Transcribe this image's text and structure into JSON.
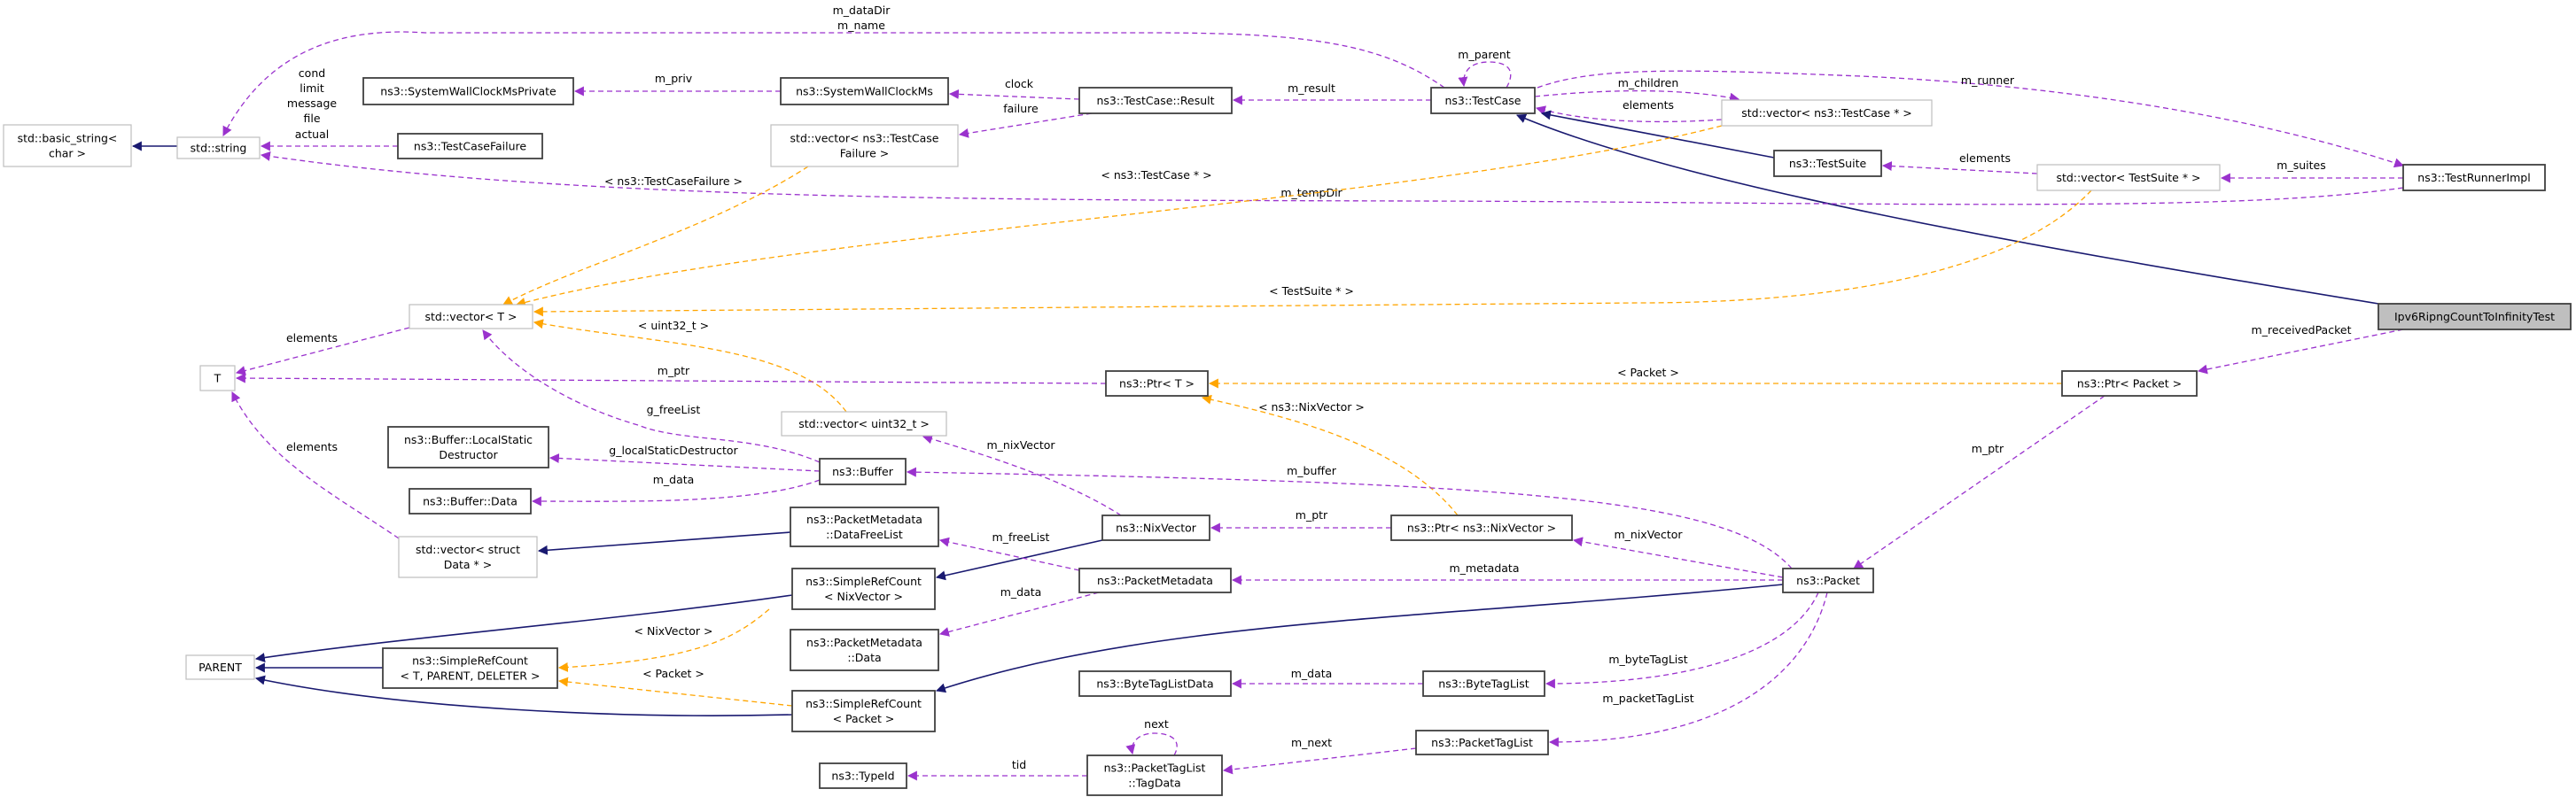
{
  "diagram": {
    "colors": {
      "member": "#9a32cd",
      "template": "#ffa500",
      "inheritance": "#191970",
      "highlight_fill": "#bfbfbf",
      "documented_border": "#404040",
      "undocumented_border": "#bfbfbf"
    },
    "nodes": [
      {
        "id": "basic_string",
        "lines": [
          "std::basic_string<",
          "char >"
        ],
        "style": "plain"
      },
      {
        "id": "std_string",
        "lines": [
          "std::string"
        ],
        "style": "plain"
      },
      {
        "id": "swcm_private",
        "lines": [
          "ns3::SystemWallClockMsPrivate"
        ],
        "style": "doc"
      },
      {
        "id": "swcm",
        "lines": [
          "ns3::SystemWallClockMs"
        ],
        "style": "doc"
      },
      {
        "id": "tc_result",
        "lines": [
          "ns3::TestCase::Result"
        ],
        "style": "doc"
      },
      {
        "id": "testcase",
        "lines": [
          "ns3::TestCase"
        ],
        "style": "doc"
      },
      {
        "id": "tc_failure",
        "lines": [
          "ns3::TestCaseFailure"
        ],
        "style": "doc"
      },
      {
        "id": "vec_tcf",
        "lines": [
          "std::vector< ns3::TestCase",
          "Failure >"
        ],
        "style": "plain"
      },
      {
        "id": "vec_tcp",
        "lines": [
          "std::vector< ns3::TestCase * >"
        ],
        "style": "plain"
      },
      {
        "id": "testsuite",
        "lines": [
          "ns3::TestSuite"
        ],
        "style": "doc"
      },
      {
        "id": "vec_tsp",
        "lines": [
          "std::vector< TestSuite * >"
        ],
        "style": "plain"
      },
      {
        "id": "runner",
        "lines": [
          "ns3::TestRunnerImpl"
        ],
        "style": "doc"
      },
      {
        "id": "ipv6",
        "lines": [
          "Ipv6RipngCountToInfinityTest"
        ],
        "style": "focus"
      },
      {
        "id": "vec_t",
        "lines": [
          "std::vector< T >"
        ],
        "style": "plain"
      },
      {
        "id": "t",
        "lines": [
          "T"
        ],
        "style": "plain"
      },
      {
        "id": "ptr_t",
        "lines": [
          "ns3::Ptr< T >"
        ],
        "style": "doc"
      },
      {
        "id": "ptr_packet",
        "lines": [
          "ns3::Ptr< Packet >"
        ],
        "style": "doc"
      },
      {
        "id": "vec_u32",
        "lines": [
          "std::vector< uint32_t >"
        ],
        "style": "plain"
      },
      {
        "id": "buf_lsd",
        "lines": [
          "ns3::Buffer::LocalStatic",
          "Destructor"
        ],
        "style": "doc"
      },
      {
        "id": "buffer",
        "lines": [
          "ns3::Buffer"
        ],
        "style": "doc"
      },
      {
        "id": "buf_data",
        "lines": [
          "ns3::Buffer::Data"
        ],
        "style": "doc"
      },
      {
        "id": "pm_dfl",
        "lines": [
          "ns3::PacketMetadata",
          "::DataFreeList"
        ],
        "style": "doc"
      },
      {
        "id": "nixvector",
        "lines": [
          "ns3::NixVector"
        ],
        "style": "doc"
      },
      {
        "id": "ptr_nix",
        "lines": [
          "ns3::Ptr< ns3::NixVector >"
        ],
        "style": "doc"
      },
      {
        "id": "vec_data",
        "lines": [
          "std::vector< struct",
          "Data * >"
        ],
        "style": "plain"
      },
      {
        "id": "src_nix",
        "lines": [
          "ns3::SimpleRefCount",
          "< NixVector >"
        ],
        "style": "doc"
      },
      {
        "id": "pmetadata",
        "lines": [
          "ns3::PacketMetadata"
        ],
        "style": "doc"
      },
      {
        "id": "packet",
        "lines": [
          "ns3::Packet"
        ],
        "style": "doc"
      },
      {
        "id": "pm_data",
        "lines": [
          "ns3::PacketMetadata",
          "::Data"
        ],
        "style": "doc"
      },
      {
        "id": "parent",
        "lines": [
          "PARENT"
        ],
        "style": "plain"
      },
      {
        "id": "src_t",
        "lines": [
          "ns3::SimpleRefCount",
          "< T, PARENT, DELETER >"
        ],
        "style": "doc"
      },
      {
        "id": "btl_data",
        "lines": [
          "ns3::ByteTagListData"
        ],
        "style": "doc"
      },
      {
        "id": "btl",
        "lines": [
          "ns3::ByteTagList"
        ],
        "style": "doc"
      },
      {
        "id": "src_packet",
        "lines": [
          "ns3::SimpleRefCount",
          "< Packet >"
        ],
        "style": "doc"
      },
      {
        "id": "ptl",
        "lines": [
          "ns3::PacketTagList"
        ],
        "style": "doc"
      },
      {
        "id": "typeid",
        "lines": [
          "ns3::TypeId"
        ],
        "style": "doc"
      },
      {
        "id": "tagdata",
        "lines": [
          "ns3::PacketTagList",
          "::TagData"
        ],
        "style": "doc"
      }
    ],
    "edges": [
      {
        "from": "testcase",
        "to": "std_string",
        "kind": "member",
        "labels": [
          "m_dataDir",
          "m_name"
        ]
      },
      {
        "from": "swcm",
        "to": "swcm_private",
        "kind": "member",
        "labels": [
          "m_priv"
        ]
      },
      {
        "from": "tc_result",
        "to": "swcm",
        "kind": "member",
        "labels": [
          "clock"
        ]
      },
      {
        "from": "tc_result",
        "to": "vec_tcf",
        "kind": "member",
        "labels": [
          "failure"
        ]
      },
      {
        "from": "testcase",
        "to": "tc_result",
        "kind": "member",
        "labels": [
          "m_result"
        ]
      },
      {
        "from": "testcase",
        "to": "testcase",
        "kind": "member",
        "labels": [
          "m_parent"
        ]
      },
      {
        "from": "testcase",
        "to": "vec_tcp",
        "kind": "member",
        "labels": [
          "m_children"
        ]
      },
      {
        "from": "vec_tcp",
        "to": "testcase",
        "kind": "member",
        "labels": [
          "elements"
        ]
      },
      {
        "from": "testsuite",
        "to": "testcase",
        "kind": "inheritance",
        "labels": []
      },
      {
        "from": "ipv6",
        "to": "testcase",
        "kind": "inheritance",
        "labels": []
      },
      {
        "from": "testcase",
        "to": "runner",
        "kind": "member",
        "labels": [
          "m_runner"
        ]
      },
      {
        "from": "vec_tsp",
        "to": "testsuite",
        "kind": "member",
        "labels": [
          "elements"
        ]
      },
      {
        "from": "runner",
        "to": "vec_tsp",
        "kind": "member",
        "labels": [
          "m_suites"
        ]
      },
      {
        "from": "runner",
        "to": "std_string",
        "kind": "member",
        "labels": [
          "m_tempDir"
        ]
      },
      {
        "from": "tc_failure",
        "to": "std_string",
        "kind": "member",
        "labels": [
          "cond",
          "limit",
          "message",
          "file",
          "actual"
        ]
      },
      {
        "from": "std_string",
        "to": "basic_string",
        "kind": "inheritance",
        "labels": []
      },
      {
        "from": "vec_tcf",
        "to": "vec_t",
        "kind": "template",
        "labels": [
          "< ns3::TestCaseFailure >"
        ]
      },
      {
        "from": "vec_tcp",
        "to": "vec_t",
        "kind": "template",
        "labels": [
          "< ns3::TestCase * >"
        ]
      },
      {
        "from": "vec_tsp",
        "to": "vec_t",
        "kind": "template",
        "labels": [
          "< TestSuite * >"
        ]
      },
      {
        "from": "vec_u32",
        "to": "vec_t",
        "kind": "template",
        "labels": [
          "< uint32_t >"
        ]
      },
      {
        "from": "vec_t",
        "to": "t",
        "kind": "member",
        "labels": [
          "elements"
        ]
      },
      {
        "from": "ptr_t",
        "to": "t",
        "kind": "member",
        "labels": [
          "m_ptr"
        ]
      },
      {
        "from": "vec_data",
        "to": "t",
        "kind": "member",
        "labels": [
          "elements"
        ]
      },
      {
        "from": "buffer",
        "to": "vec_t",
        "kind": "member",
        "labels": [
          "g_freeList"
        ]
      },
      {
        "from": "buffer",
        "to": "buf_lsd",
        "kind": "member",
        "labels": [
          "g_localStaticDestructor"
        ]
      },
      {
        "from": "buffer",
        "to": "buf_data",
        "kind": "member",
        "labels": [
          "m_data"
        ]
      },
      {
        "from": "pm_dfl",
        "to": "vec_data",
        "kind": "inheritance",
        "labels": []
      },
      {
        "from": "nixvector",
        "to": "src_nix",
        "kind": "inheritance",
        "labels": []
      },
      {
        "from": "nixvector",
        "to": "vec_u32",
        "kind": "member",
        "labels": [
          "m_nixVector"
        ]
      },
      {
        "from": "ptr_nix",
        "to": "nixvector",
        "kind": "member",
        "labels": [
          "m_ptr"
        ]
      },
      {
        "from": "ptr_nix",
        "to": "ptr_t",
        "kind": "template",
        "labels": [
          "< ns3::NixVector >"
        ]
      },
      {
        "from": "ptr_packet",
        "to": "ptr_t",
        "kind": "template",
        "labels": [
          "< Packet >"
        ]
      },
      {
        "from": "ipv6",
        "to": "ptr_packet",
        "kind": "member",
        "labels": [
          "m_receivedPacket"
        ]
      },
      {
        "from": "ptr_packet",
        "to": "packet",
        "kind": "member",
        "labels": [
          "m_ptr"
        ]
      },
      {
        "from": "packet",
        "to": "buffer",
        "kind": "member",
        "labels": [
          "m_buffer"
        ]
      },
      {
        "from": "packet",
        "to": "ptr_nix",
        "kind": "member",
        "labels": [
          "m_nixVector"
        ]
      },
      {
        "from": "packet",
        "to": "pmetadata",
        "kind": "member",
        "labels": [
          "m_metadata"
        ]
      },
      {
        "from": "packet",
        "to": "src_packet",
        "kind": "inheritance",
        "labels": []
      },
      {
        "from": "pmetadata",
        "to": "pm_dfl",
        "kind": "member",
        "labels": [
          "m_freeList"
        ]
      },
      {
        "from": "pmetadata",
        "to": "pm_data",
        "kind": "member",
        "labels": [
          "m_data"
        ]
      },
      {
        "from": "src_nix",
        "to": "parent",
        "kind": "inheritance",
        "labels": []
      },
      {
        "from": "src_t",
        "to": "parent",
        "kind": "inheritance",
        "labels": []
      },
      {
        "from": "src_packet",
        "to": "parent",
        "kind": "inheritance",
        "labels": []
      },
      {
        "from": "src_nix",
        "to": "src_t",
        "kind": "template",
        "labels": [
          "< NixVector >"
        ]
      },
      {
        "from": "src_packet",
        "to": "src_t",
        "kind": "template",
        "labels": [
          "< Packet >"
        ]
      },
      {
        "from": "packet",
        "to": "btl",
        "kind": "member",
        "labels": [
          "m_byteTagList"
        ]
      },
      {
        "from": "packet",
        "to": "ptl",
        "kind": "member",
        "labels": [
          "m_packetTagList"
        ]
      },
      {
        "from": "btl",
        "to": "btl_data",
        "kind": "member",
        "labels": [
          "m_data"
        ]
      },
      {
        "from": "ptl",
        "to": "tagdata",
        "kind": "member",
        "labels": [
          "m_next"
        ]
      },
      {
        "from": "tagdata",
        "to": "tagdata",
        "kind": "member",
        "labels": [
          "next"
        ]
      },
      {
        "from": "tagdata",
        "to": "typeid",
        "kind": "member",
        "labels": [
          "tid"
        ]
      }
    ]
  }
}
